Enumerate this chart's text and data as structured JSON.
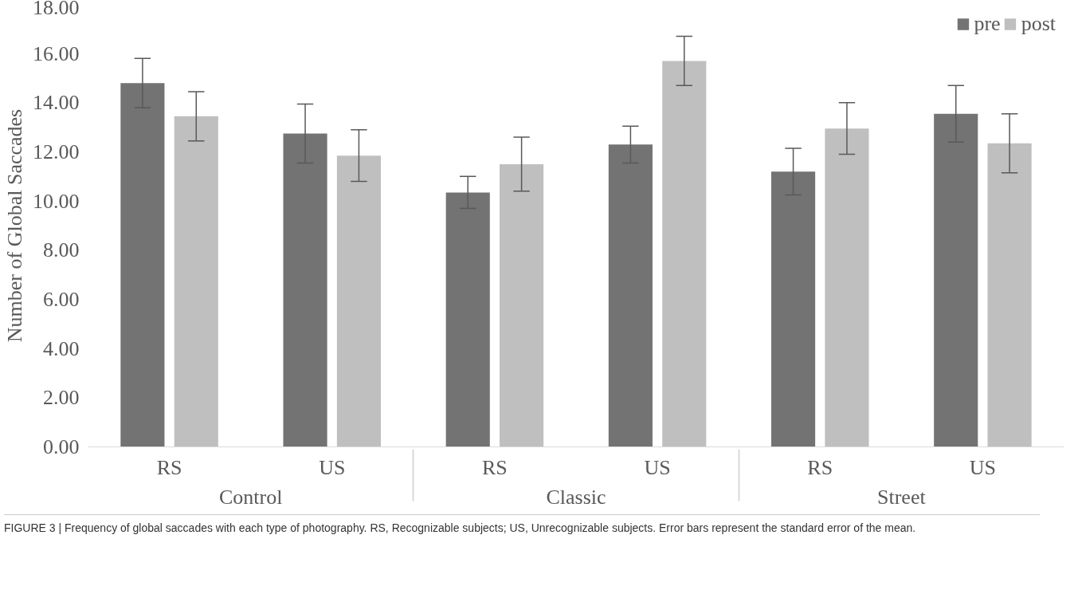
{
  "chart_data": {
    "type": "bar",
    "ylabel": "Number of Global Saccades",
    "categories": [
      "RS",
      "US",
      "RS",
      "US",
      "RS",
      "US"
    ],
    "series": [
      {
        "name": "pre",
        "color": "#737373",
        "values": [
          14.8,
          12.75,
          10.35,
          12.3,
          11.2,
          13.55
        ],
        "errors": [
          1.0,
          1.2,
          0.65,
          0.75,
          0.95,
          1.15
        ]
      },
      {
        "name": "post",
        "color": "#bfbfbf",
        "values": [
          13.45,
          11.85,
          11.5,
          15.7,
          12.95,
          12.35
        ],
        "errors": [
          1.0,
          1.05,
          1.1,
          1.0,
          1.05,
          1.2
        ]
      }
    ],
    "ylim": [
      0,
      18
    ],
    "yticks": [
      {
        "value": 0,
        "label": "0.00"
      },
      {
        "value": 2,
        "label": "2.00"
      },
      {
        "value": 4,
        "label": "4.00"
      },
      {
        "value": 6,
        "label": "6.00"
      },
      {
        "value": 8,
        "label": "8.00"
      },
      {
        "value": 10,
        "label": "10.00"
      },
      {
        "value": 12,
        "label": "12.00"
      },
      {
        "value": 14,
        "label": "14.00"
      },
      {
        "value": 16,
        "label": "16.00"
      },
      {
        "value": 18,
        "label": "18.00"
      }
    ],
    "legend": "top right",
    "grid": false,
    "annotations": [
      "Control",
      "Classic",
      "Street",
      "FIGURE 3 | Frequency of global saccades with each type of photography. RS, Recognizable subjects; US, Unrecognizable subjects. Error bars represent the standard error of the mean."
    ]
  }
}
